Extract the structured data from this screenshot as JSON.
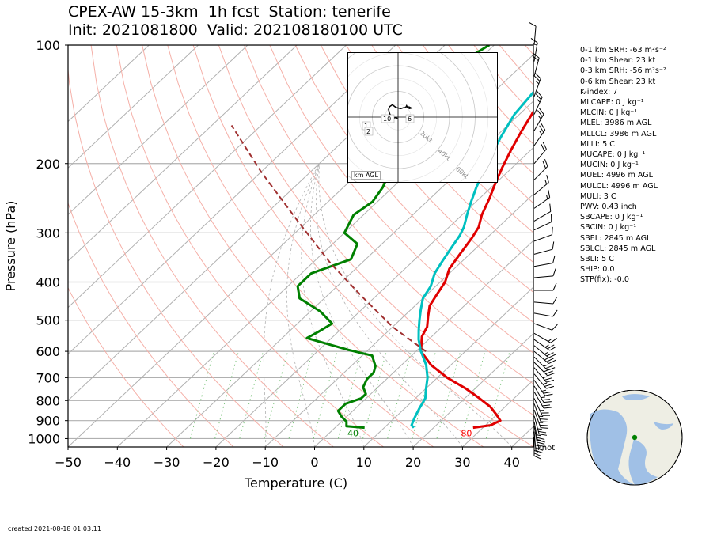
{
  "title": {
    "line1": "CPEX-AW 15-3km  1h fcst  Station: tenerife",
    "line2": "Init: 2021081800  Valid: 202108180100 UTC"
  },
  "created": "created 2021-08-18 01:03:11",
  "stats": [
    "0-1 km SRH: -63 m²s⁻²",
    "0-1 km Shear: 23 kt",
    "0-3 km SRH: -56 m²s⁻²",
    "0-6 km Shear: 23 kt",
    "K-index: 7",
    "MLCAPE: 0 J kg⁻¹",
    "MLCIN: 0 J kg⁻¹",
    "MLEL: 3986 m AGL",
    "MLLCL: 3986 m AGL",
    "MLLI: 5 C",
    "MUCAPE: 0 J kg⁻¹",
    "MUCIN: 0 J kg⁻¹",
    "MUEL: 4996 m AGL",
    "MULCL: 4996 m AGL",
    "MULI: 3 C",
    "PWV: 0.43 inch",
    "SBCAPE: 0 J kg⁻¹",
    "SBCIN: 0 J kg⁻¹",
    "SBEL: 2845 m AGL",
    "SBLCL: 2845 m AGL",
    "SBLI: 5 C",
    "SHIP: 0.0",
    "STP(fix): -0.0"
  ],
  "hodograph": {
    "ring_labels": [
      "20kt",
      "40kt",
      "60kt",
      "80kt"
    ],
    "height_labels": [
      "1",
      "2",
      "10",
      "6"
    ],
    "legend": "km AGL",
    "trace": [
      [
        -0.5,
        -1.5
      ],
      [
        -1.5,
        -0.8
      ],
      [
        -2.5,
        -0.5
      ],
      [
        -3.5,
        -0.8
      ],
      [
        -5,
        0
      ],
      [
        -7,
        1
      ],
      [
        -8,
        2
      ],
      [
        -9,
        4
      ],
      [
        -10,
        8
      ],
      [
        -9,
        11
      ],
      [
        -6,
        13
      ],
      [
        -2,
        10
      ],
      [
        3,
        9
      ],
      [
        6,
        10
      ],
      [
        8,
        10
      ],
      [
        9,
        12
      ],
      [
        10,
        10
      ],
      [
        12,
        9
      ],
      [
        14,
        9.5
      ],
      [
        11,
        11
      ]
    ]
  },
  "globe": {
    "marker_color": "#008000"
  },
  "chart_data": {
    "type": "skew-t",
    "xlabel": "Temperature (C)",
    "ylabel": "Pressure (hPa)",
    "xlim": [
      -50,
      45
    ],
    "ylim": [
      1000,
      100
    ],
    "xticks": [
      -50,
      -40,
      -30,
      -20,
      -10,
      0,
      10,
      20,
      30,
      40
    ],
    "yticks": [
      100,
      200,
      300,
      400,
      500,
      600,
      700,
      800,
      900,
      1000
    ],
    "barb_units": "knot",
    "surface_labels": [
      {
        "text": "40",
        "color": "#008000",
        "x": 6,
        "p": 1000
      },
      {
        "text": "80",
        "color": "#ff0000",
        "x": 29,
        "p": 1000
      }
    ],
    "series": [
      {
        "color": "#e00000",
        "points": [
          [
            28,
            938
          ],
          [
            31,
            925
          ],
          [
            32,
            900
          ],
          [
            30,
            870
          ],
          [
            27,
            830
          ],
          [
            23,
            790
          ],
          [
            18,
            745
          ],
          [
            12,
            700
          ],
          [
            6,
            650
          ],
          [
            1,
            600
          ],
          [
            -2,
            550
          ],
          [
            -3,
            520
          ],
          [
            -5,
            490
          ],
          [
            -7,
            460
          ],
          [
            -8,
            430
          ],
          [
            -9,
            400
          ],
          [
            -11,
            370
          ],
          [
            -12,
            340
          ],
          [
            -13,
            310
          ],
          [
            -14,
            290
          ],
          [
            -16,
            270
          ],
          [
            -18,
            245
          ],
          [
            -20,
            225
          ],
          [
            -22,
            205
          ],
          [
            -24,
            185
          ],
          [
            -26,
            165
          ],
          [
            -28,
            145
          ],
          [
            -30,
            125
          ],
          [
            -32,
            110
          ],
          [
            -33,
            100
          ]
        ]
      },
      {
        "color": "#00c0c0",
        "points": [
          [
            16,
            938
          ],
          [
            15,
            925
          ],
          [
            14,
            885
          ],
          [
            13,
            840
          ],
          [
            12,
            790
          ],
          [
            10,
            745
          ],
          [
            8,
            700
          ],
          [
            5,
            650
          ],
          [
            1,
            600
          ],
          [
            -2,
            560
          ],
          [
            -4,
            530
          ],
          [
            -6,
            500
          ],
          [
            -8,
            470
          ],
          [
            -10,
            440
          ],
          [
            -11,
            410
          ],
          [
            -13,
            380
          ],
          [
            -14,
            355
          ],
          [
            -15,
            330
          ],
          [
            -16,
            305
          ],
          [
            -17,
            290
          ],
          [
            -19,
            270
          ],
          [
            -21,
            250
          ],
          [
            -23,
            230
          ],
          [
            -25,
            210
          ],
          [
            -27,
            190
          ],
          [
            -29,
            170
          ],
          [
            -31,
            150
          ],
          [
            -32,
            130
          ],
          [
            -33,
            115
          ],
          [
            -34,
            100
          ]
        ]
      },
      {
        "color": "#008000",
        "points": [
          [
            6,
            938
          ],
          [
            2,
            930
          ],
          [
            1,
            905
          ],
          [
            -1,
            880
          ],
          [
            -3,
            850
          ],
          [
            -3,
            815
          ],
          [
            -1,
            790
          ],
          [
            -1,
            770
          ],
          [
            -3,
            740
          ],
          [
            -4,
            705
          ],
          [
            -4,
            680
          ],
          [
            -5,
            655
          ],
          [
            -8,
            615
          ],
          [
            -14,
            595
          ],
          [
            -25,
            555
          ],
          [
            -24,
            535
          ],
          [
            -23,
            510
          ],
          [
            -28,
            475
          ],
          [
            -35,
            440
          ],
          [
            -38,
            410
          ],
          [
            -38,
            380
          ],
          [
            -33,
            350
          ],
          [
            -35,
            320
          ],
          [
            -40,
            300
          ],
          [
            -42,
            270
          ],
          [
            -41,
            250
          ],
          [
            -42,
            230
          ],
          [
            -45,
            200
          ],
          [
            -48,
            185
          ],
          [
            -51,
            160
          ],
          [
            -53,
            140
          ],
          [
            -54,
            125
          ],
          [
            -53,
            110
          ],
          [
            -51,
            100
          ]
        ]
      },
      {
        "color": "#a03030",
        "dashed": true,
        "points": [
          [
            2,
            600
          ],
          [
            -10,
            520
          ],
          [
            -22,
            440
          ],
          [
            -36,
            360
          ],
          [
            -52,
            280
          ],
          [
            -70,
            210
          ],
          [
            -86,
            160
          ]
        ]
      }
    ],
    "barbs": [
      {
        "p": 990,
        "speed": 25,
        "dir": 180
      },
      {
        "p": 960,
        "speed": 25,
        "dir": 175
      },
      {
        "p": 930,
        "speed": 25,
        "dir": 170
      },
      {
        "p": 905,
        "speed": 25,
        "dir": 170
      },
      {
        "p": 875,
        "speed": 25,
        "dir": 165
      },
      {
        "p": 845,
        "speed": 25,
        "dir": 160
      },
      {
        "p": 815,
        "speed": 25,
        "dir": 160
      },
      {
        "p": 790,
        "speed": 25,
        "dir": 155
      },
      {
        "p": 760,
        "speed": 25,
        "dir": 150
      },
      {
        "p": 735,
        "speed": 25,
        "dir": 150
      },
      {
        "p": 710,
        "speed": 25,
        "dir": 145
      },
      {
        "p": 685,
        "speed": 25,
        "dir": 140
      },
      {
        "p": 660,
        "speed": 25,
        "dir": 140
      },
      {
        "p": 640,
        "speed": 25,
        "dir": 135
      },
      {
        "p": 620,
        "speed": 25,
        "dir": 135
      },
      {
        "p": 600,
        "speed": 25,
        "dir": 130
      },
      {
        "p": 580,
        "speed": 25,
        "dir": 130
      },
      {
        "p": 560,
        "speed": 25,
        "dir": 125
      },
      {
        "p": 540,
        "speed": 15,
        "dir": 120
      },
      {
        "p": 510,
        "speed": 10,
        "dir": 110
      },
      {
        "p": 480,
        "speed": 10,
        "dir": 100
      },
      {
        "p": 450,
        "speed": 10,
        "dir": 95
      },
      {
        "p": 420,
        "speed": 10,
        "dir": 90
      },
      {
        "p": 390,
        "speed": 10,
        "dir": 85
      },
      {
        "p": 365,
        "speed": 10,
        "dir": 80
      },
      {
        "p": 340,
        "speed": 10,
        "dir": 75
      },
      {
        "p": 315,
        "speed": 10,
        "dir": 70
      },
      {
        "p": 295,
        "speed": 10,
        "dir": 65
      },
      {
        "p": 280,
        "speed": 10,
        "dir": 60
      },
      {
        "p": 260,
        "speed": 15,
        "dir": 55
      },
      {
        "p": 240,
        "speed": 15,
        "dir": 50
      },
      {
        "p": 220,
        "speed": 20,
        "dir": 45
      },
      {
        "p": 200,
        "speed": 20,
        "dir": 40
      },
      {
        "p": 180,
        "speed": 25,
        "dir": 35
      },
      {
        "p": 165,
        "speed": 25,
        "dir": 30
      },
      {
        "p": 150,
        "speed": 25,
        "dir": 25
      },
      {
        "p": 135,
        "speed": 25,
        "dir": 20
      },
      {
        "p": 120,
        "speed": 20,
        "dir": 15
      },
      {
        "p": 110,
        "speed": 15,
        "dir": 10
      },
      {
        "p": 100,
        "speed": 10,
        "dir": 5
      }
    ]
  }
}
